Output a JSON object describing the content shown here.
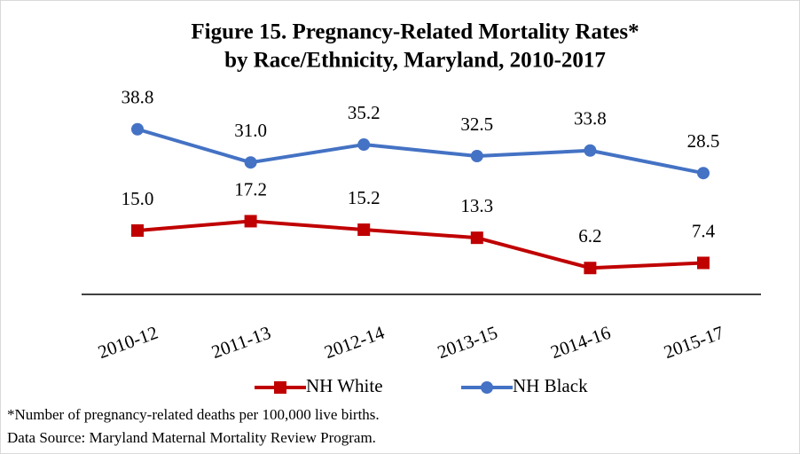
{
  "chart_data": {
    "type": "line",
    "title": [
      "Figure 15. Pregnancy-Related Mortality Rates*",
      "by Race/Ethnicity, Maryland, 2010-2017"
    ],
    "categories": [
      "2010-12",
      "2011-13",
      "2012-14",
      "2013-15",
      "2014-16",
      "2015-17"
    ],
    "series": [
      {
        "name": "NH White",
        "color": "#c00000",
        "marker": "square",
        "values": [
          15.0,
          17.2,
          15.2,
          13.3,
          6.2,
          7.4
        ],
        "value_labels": [
          "15.0",
          "17.2",
          "15.2",
          "13.3",
          "6.2",
          "7.4"
        ]
      },
      {
        "name": "NH Black",
        "color": "#4472c4",
        "marker": "circle",
        "values": [
          38.8,
          31.0,
          35.2,
          32.5,
          33.8,
          28.5
        ],
        "value_labels": [
          "38.8",
          "31.0",
          "35.2",
          "32.5",
          "33.8",
          "28.5"
        ]
      }
    ],
    "ylim": [
      0,
      45
    ],
    "legend": "bottom",
    "annotations": [
      "*Number of pregnancy-related deaths per 100,000 live births.",
      "Data Source: Maryland Maternal Mortality Review Program."
    ]
  }
}
